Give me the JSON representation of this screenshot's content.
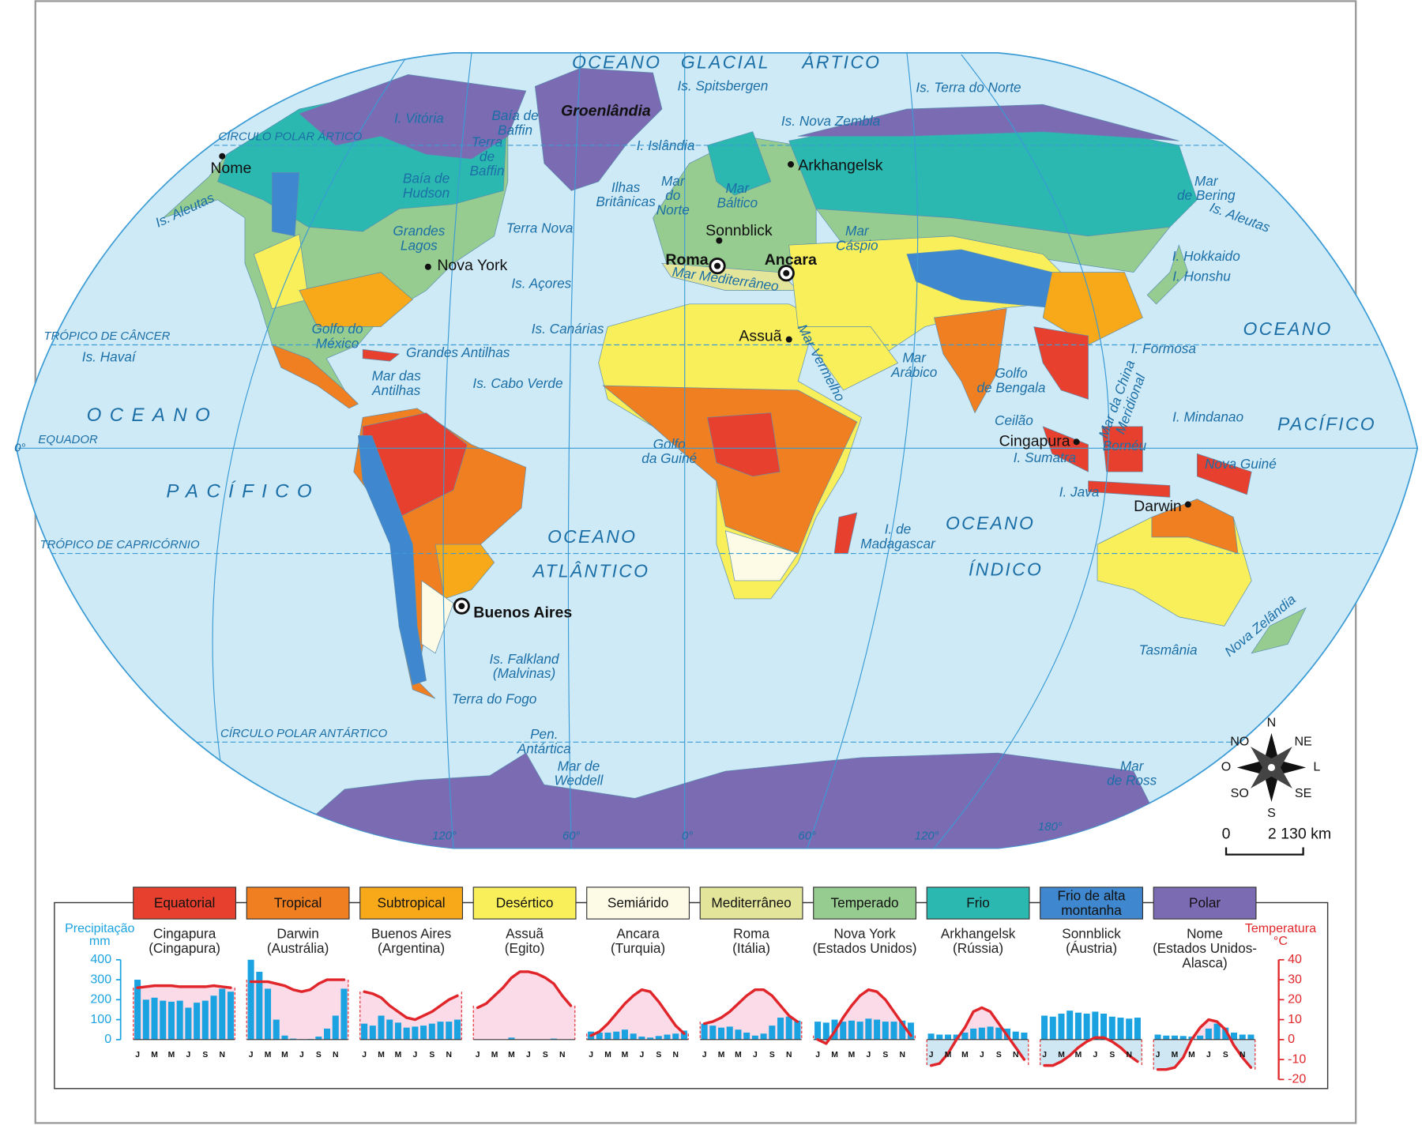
{
  "map": {
    "sea_labels": [
      [
        "OCEANO"
      ],
      [
        "GLACIAL"
      ],
      [
        "ÁRTICO"
      ],
      [
        "Is. Spitsbergen"
      ],
      [
        "Is. Terra do Norte"
      ],
      [
        "I. Vitória"
      ],
      [
        "Baía de",
        "Baffin"
      ],
      [
        "Is. Nova Zembla"
      ],
      [
        "I. Islândia"
      ],
      [
        "Terra",
        "de",
        "Baffin"
      ],
      [
        "Baía de",
        "Hudson"
      ],
      [
        "Ilhas",
        "Britânicas"
      ],
      [
        "Mar",
        "do",
        "Norte"
      ],
      [
        "Mar",
        "Báltico"
      ],
      [
        "Mar",
        "de Bering"
      ],
      [
        "Is. Aleutas"
      ],
      [
        "Is. Aleutas"
      ],
      [
        "Terra Nova"
      ],
      [
        "Grandes",
        "Lagos"
      ],
      [
        "Mar",
        "Cáspio"
      ],
      [
        "I. Hokkaido"
      ],
      [
        "I. Honshu"
      ],
      [
        "Is. Açores"
      ],
      [
        "Mar Mediterrâneo"
      ],
      [
        "Golfo do",
        "México"
      ],
      [
        "Is. Canárias"
      ],
      [
        "Mar Vermelho"
      ],
      [
        "OCEANO"
      ],
      [
        "Is. Havaí"
      ],
      [
        "Grandes Antilhas"
      ],
      [
        "Mar",
        "Arábico"
      ],
      [
        "I. Formosa"
      ],
      [
        "Mar das",
        "Antilhas"
      ],
      [
        "Is. Cabo Verde"
      ],
      [
        "Golfo",
        "de Bengala"
      ],
      [
        "Mar da China",
        "Meridional"
      ],
      [
        "I. Mindanao"
      ],
      [
        "OCEANO"
      ],
      [
        "PACÍFICO"
      ],
      [
        "Ceilão"
      ],
      [
        "Golfo",
        "da Guiné"
      ],
      [
        "Bornéu"
      ],
      [
        "I. Sumatra"
      ],
      [
        "Nova Guiné"
      ],
      [
        "PACÍFICO"
      ],
      [
        "I. Java"
      ],
      [
        "OCEANO"
      ],
      [
        "OCEANO"
      ],
      [
        "I. de",
        "Madagascar"
      ],
      [
        "ATLÂNTICO"
      ],
      [
        "ÍNDICO"
      ],
      [
        "Is. Falkland",
        "(Malvinas)"
      ],
      [
        "Nova Zelândia"
      ],
      [
        "Tasmânia"
      ],
      [
        "Terra do Fogo"
      ],
      [
        "Pen.",
        "Antártica"
      ],
      [
        "Mar de",
        "Weddell"
      ],
      [
        "Mar",
        "de Ross"
      ]
    ],
    "greenland": "Groenlândia",
    "parallels": [
      "CÍRCULO POLAR ÁRTICO",
      "TRÓPICO DE CÂNCER",
      "EQUADOR",
      "TRÓPICO DE CAPRICÓRNIO",
      "CÍRCULO POLAR ANTÁRTICO"
    ],
    "equator_degree": "0°",
    "meridians": [
      "120°",
      "60°",
      "0°",
      "60°",
      "120°",
      "180°"
    ],
    "cities": [
      "Nome",
      "Arkhangelsk",
      "Sonnblick",
      "Nova York",
      "Assuã",
      "Cingapura",
      "Darwin"
    ],
    "capitals": [
      "Roma",
      "Ancara",
      "Buenos Aires"
    ],
    "compass": [
      "N",
      "NE",
      "L",
      "SE",
      "S",
      "SO",
      "O",
      "NO"
    ],
    "scale": [
      "0",
      "2 130 km"
    ]
  },
  "legend": [
    {
      "lines": [
        "Equatorial"
      ],
      "color": "#e8402e"
    },
    {
      "lines": [
        "Tropical"
      ],
      "color": "#f07f22"
    },
    {
      "lines": [
        "Subtropical"
      ],
      "color": "#f7a91a"
    },
    {
      "lines": [
        "Desértico"
      ],
      "color": "#f9ef5a"
    },
    {
      "lines": [
        "Semiárido"
      ],
      "color": "#fdfbe6"
    },
    {
      "lines": [
        "Mediterrâneo"
      ],
      "color": "#e3e69a"
    },
    {
      "lines": [
        "Temperado"
      ],
      "color": "#96cc8f"
    },
    {
      "lines": [
        "Frio"
      ],
      "color": "#2bb8b0"
    },
    {
      "lines": [
        "Frio de alta",
        "montanha"
      ],
      "color": "#3f88cf"
    },
    {
      "lines": [
        "Polar"
      ],
      "color": "#7a6bb3"
    }
  ],
  "climographs": {
    "precip_title": [
      "Precipitação",
      "mm"
    ],
    "temp_title": [
      "Temperatura",
      "°C"
    ],
    "ylim": [
      0,
      400
    ],
    "yticks": [
      0,
      100,
      200,
      300,
      400
    ],
    "y2lim": [
      -20,
      40
    ],
    "y2ticks": [
      40,
      30,
      20,
      10,
      0,
      -10,
      -20
    ],
    "categories": [
      "J",
      null,
      "M",
      null,
      "M",
      null,
      "J",
      null,
      "S",
      null,
      "N",
      null
    ],
    "bar_color": "#1aa3e0",
    "line_color": "#e0262a",
    "stations": [
      {
        "name": [
          "Cingapura",
          "(Cingapura)"
        ],
        "precip": [
          300,
          200,
          210,
          195,
          190,
          195,
          160,
          185,
          195,
          220,
          255,
          240
        ],
        "temp": [
          26,
          26.5,
          27,
          27,
          27,
          26.5,
          26.5,
          26.5,
          26.5,
          27,
          26.5,
          26
        ]
      },
      {
        "name": [
          "Darwin",
          "(Austrália)"
        ],
        "precip": [
          400,
          340,
          255,
          100,
          20,
          5,
          2,
          3,
          15,
          55,
          120,
          255
        ],
        "temp": [
          29,
          29,
          29,
          28,
          27,
          25,
          24,
          25,
          28,
          30,
          30,
          30
        ]
      },
      {
        "name": [
          "Buenos Aires",
          "(Argentina)"
        ],
        "precip": [
          80,
          70,
          120,
          100,
          85,
          60,
          65,
          70,
          80,
          90,
          90,
          100
        ],
        "temp": [
          24,
          23,
          21,
          17,
          14,
          11,
          10,
          12,
          14,
          17,
          20,
          22
        ]
      },
      {
        "name": [
          "Assuã",
          "(Egito)"
        ],
        "precip": [
          0,
          0,
          0,
          0,
          10,
          0,
          0,
          0,
          0,
          5,
          0,
          0
        ],
        "temp": [
          16,
          18,
          22,
          26,
          31,
          34,
          34,
          33,
          31,
          28,
          22,
          17
        ]
      },
      {
        "name": [
          "Ancara",
          "(Turquia)"
        ],
        "precip": [
          40,
          35,
          35,
          40,
          50,
          30,
          15,
          10,
          18,
          25,
          30,
          45
        ],
        "temp": [
          2,
          4,
          8,
          13,
          18,
          22,
          25,
          24,
          19,
          13,
          7,
          3
        ]
      },
      {
        "name": [
          "Roma",
          "(Itália)"
        ],
        "precip": [
          80,
          70,
          60,
          65,
          50,
          35,
          20,
          30,
          70,
          110,
          115,
          95
        ],
        "temp": [
          8,
          9,
          11,
          14,
          18,
          22,
          25,
          25,
          22,
          17,
          12,
          9
        ]
      },
      {
        "name": [
          "Nova York",
          "(Estados Unidos)"
        ],
        "precip": [
          90,
          85,
          100,
          90,
          95,
          90,
          105,
          100,
          90,
          90,
          95,
          85
        ],
        "temp": [
          0,
          -2,
          4,
          11,
          17,
          22,
          25,
          24,
          20,
          14,
          8,
          2
        ]
      },
      {
        "name": [
          "Arkhangelsk",
          "(Rússia)"
        ],
        "precip": [
          30,
          25,
          25,
          25,
          35,
          55,
          60,
          65,
          60,
          55,
          40,
          35
        ],
        "temp": [
          -13,
          -12,
          -7,
          0,
          6,
          14,
          16,
          14,
          8,
          2,
          -4,
          -10
        ]
      },
      {
        "name": [
          "Sonnblick",
          "(Áustria)"
        ],
        "precip": [
          120,
          115,
          130,
          145,
          135,
          130,
          140,
          130,
          115,
          110,
          105,
          110
        ],
        "temp": [
          -13,
          -13,
          -11,
          -8,
          -4,
          -1,
          1,
          1,
          -1,
          -4,
          -8,
          -11
        ]
      },
      {
        "name": [
          "Nome",
          "(Estados Unidos-",
          "Alasca)"
        ],
        "precip": [
          25,
          20,
          20,
          18,
          15,
          20,
          55,
          80,
          60,
          35,
          25,
          25
        ],
        "temp": [
          -15,
          -15,
          -14,
          -9,
          0,
          6,
          10,
          9,
          5,
          -3,
          -9,
          -14
        ]
      }
    ]
  }
}
